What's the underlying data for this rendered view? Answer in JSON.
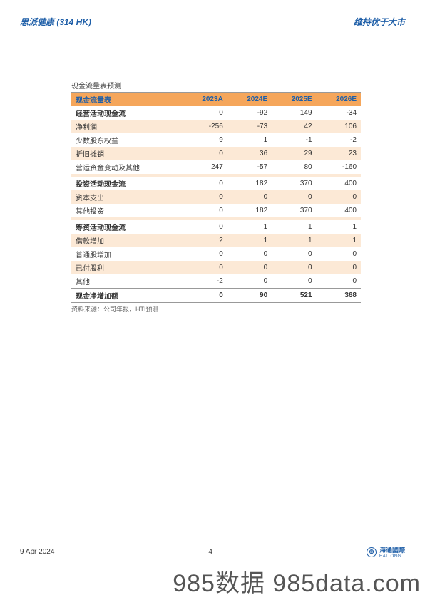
{
  "header": {
    "left": "思派健康 (314 HK)",
    "right": "维持优于大市"
  },
  "table": {
    "title": "现金流量表预测",
    "columns": [
      "现金流量表",
      "2023A",
      "2024E",
      "2025E",
      "2026E"
    ],
    "header_bg": "#f5a65b",
    "header_text_color": "#1f5fa8",
    "shaded_bg": "#fce9d6",
    "rows": [
      {
        "cells": [
          "经营活动现金流",
          "0",
          "-92",
          "149",
          "-34"
        ],
        "section": true,
        "shaded": false
      },
      {
        "cells": [
          "净利润",
          "-256",
          "-73",
          "42",
          "106"
        ],
        "section": false,
        "shaded": true
      },
      {
        "cells": [
          "少数股东权益",
          "9",
          "1",
          "-1",
          "-2"
        ],
        "section": false,
        "shaded": false
      },
      {
        "cells": [
          "折旧摊销",
          "0",
          "36",
          "29",
          "23"
        ],
        "section": false,
        "shaded": true
      },
      {
        "cells": [
          "营运资金变动及其他",
          "247",
          "-57",
          "80",
          "-160"
        ],
        "section": false,
        "shaded": false
      },
      {
        "cells": [
          "",
          "",
          "",
          "",
          ""
        ],
        "section": false,
        "shaded": true
      },
      {
        "cells": [
          "投资活动现金流",
          "0",
          "182",
          "370",
          "400"
        ],
        "section": true,
        "shaded": false
      },
      {
        "cells": [
          "资本支出",
          "0",
          "0",
          "0",
          "0"
        ],
        "section": false,
        "shaded": true
      },
      {
        "cells": [
          "其他投资",
          "0",
          "182",
          "370",
          "400"
        ],
        "section": false,
        "shaded": false
      },
      {
        "cells": [
          "",
          "",
          "",
          "",
          ""
        ],
        "section": false,
        "shaded": true
      },
      {
        "cells": [
          "筹资活动现金流",
          "0",
          "1",
          "1",
          "1"
        ],
        "section": true,
        "shaded": false
      },
      {
        "cells": [
          "借款增加",
          "2",
          "1",
          "1",
          "1"
        ],
        "section": false,
        "shaded": true
      },
      {
        "cells": [
          "普通股增加",
          "0",
          "0",
          "0",
          "0"
        ],
        "section": false,
        "shaded": false
      },
      {
        "cells": [
          "已付股利",
          "0",
          "0",
          "0",
          "0"
        ],
        "section": false,
        "shaded": true
      },
      {
        "cells": [
          "其他",
          "-2",
          "0",
          "0",
          "0"
        ],
        "section": false,
        "shaded": false
      },
      {
        "cells": [
          "现金净增加额",
          "0",
          "90",
          "521",
          "368"
        ],
        "section": false,
        "shaded": false,
        "total": true
      }
    ],
    "source": "资料来源：公司年报，HTI预测"
  },
  "footer": {
    "date": "9 Apr 2024",
    "page": "4",
    "logo_text": "海通國際",
    "logo_sub": "HAITONG"
  },
  "watermark": "985数据 985data.com"
}
